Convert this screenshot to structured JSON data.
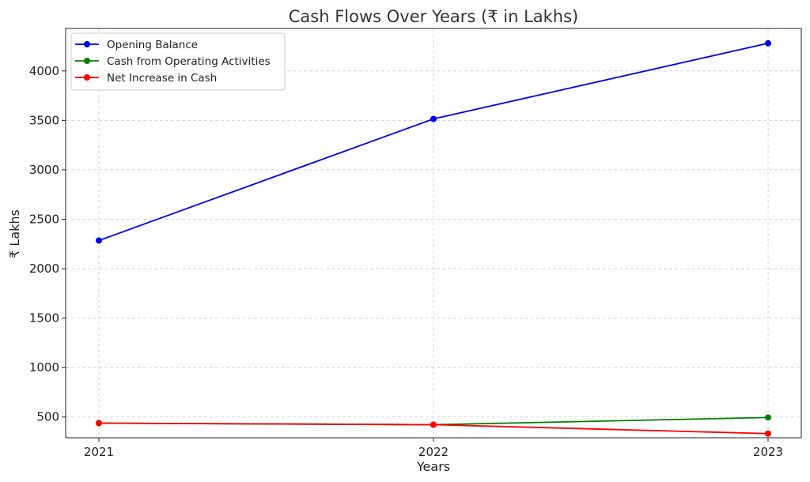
{
  "chart_data": {
    "type": "line",
    "title": "Cash Flows Over Years (₹ in Lakhs)",
    "xlabel": "Years",
    "ylabel": "₹ Lakhs",
    "categories": [
      "2021",
      "2022",
      "2023"
    ],
    "yticks": [
      500,
      1000,
      1500,
      2000,
      2500,
      3000,
      3500,
      4000
    ],
    "ylim": [
      290,
      4430
    ],
    "grid": true,
    "legend_position": "top-left",
    "series": [
      {
        "name": "Opening Balance",
        "color": "#0000ee",
        "values": [
          2285,
          3515,
          4280
        ]
      },
      {
        "name": "Cash from Operating Activities",
        "color": "#008000",
        "values": [
          438,
          422,
          495
        ]
      },
      {
        "name": "Net Increase in Cash",
        "color": "#ff0000",
        "values": [
          438,
          422,
          332
        ]
      }
    ]
  }
}
